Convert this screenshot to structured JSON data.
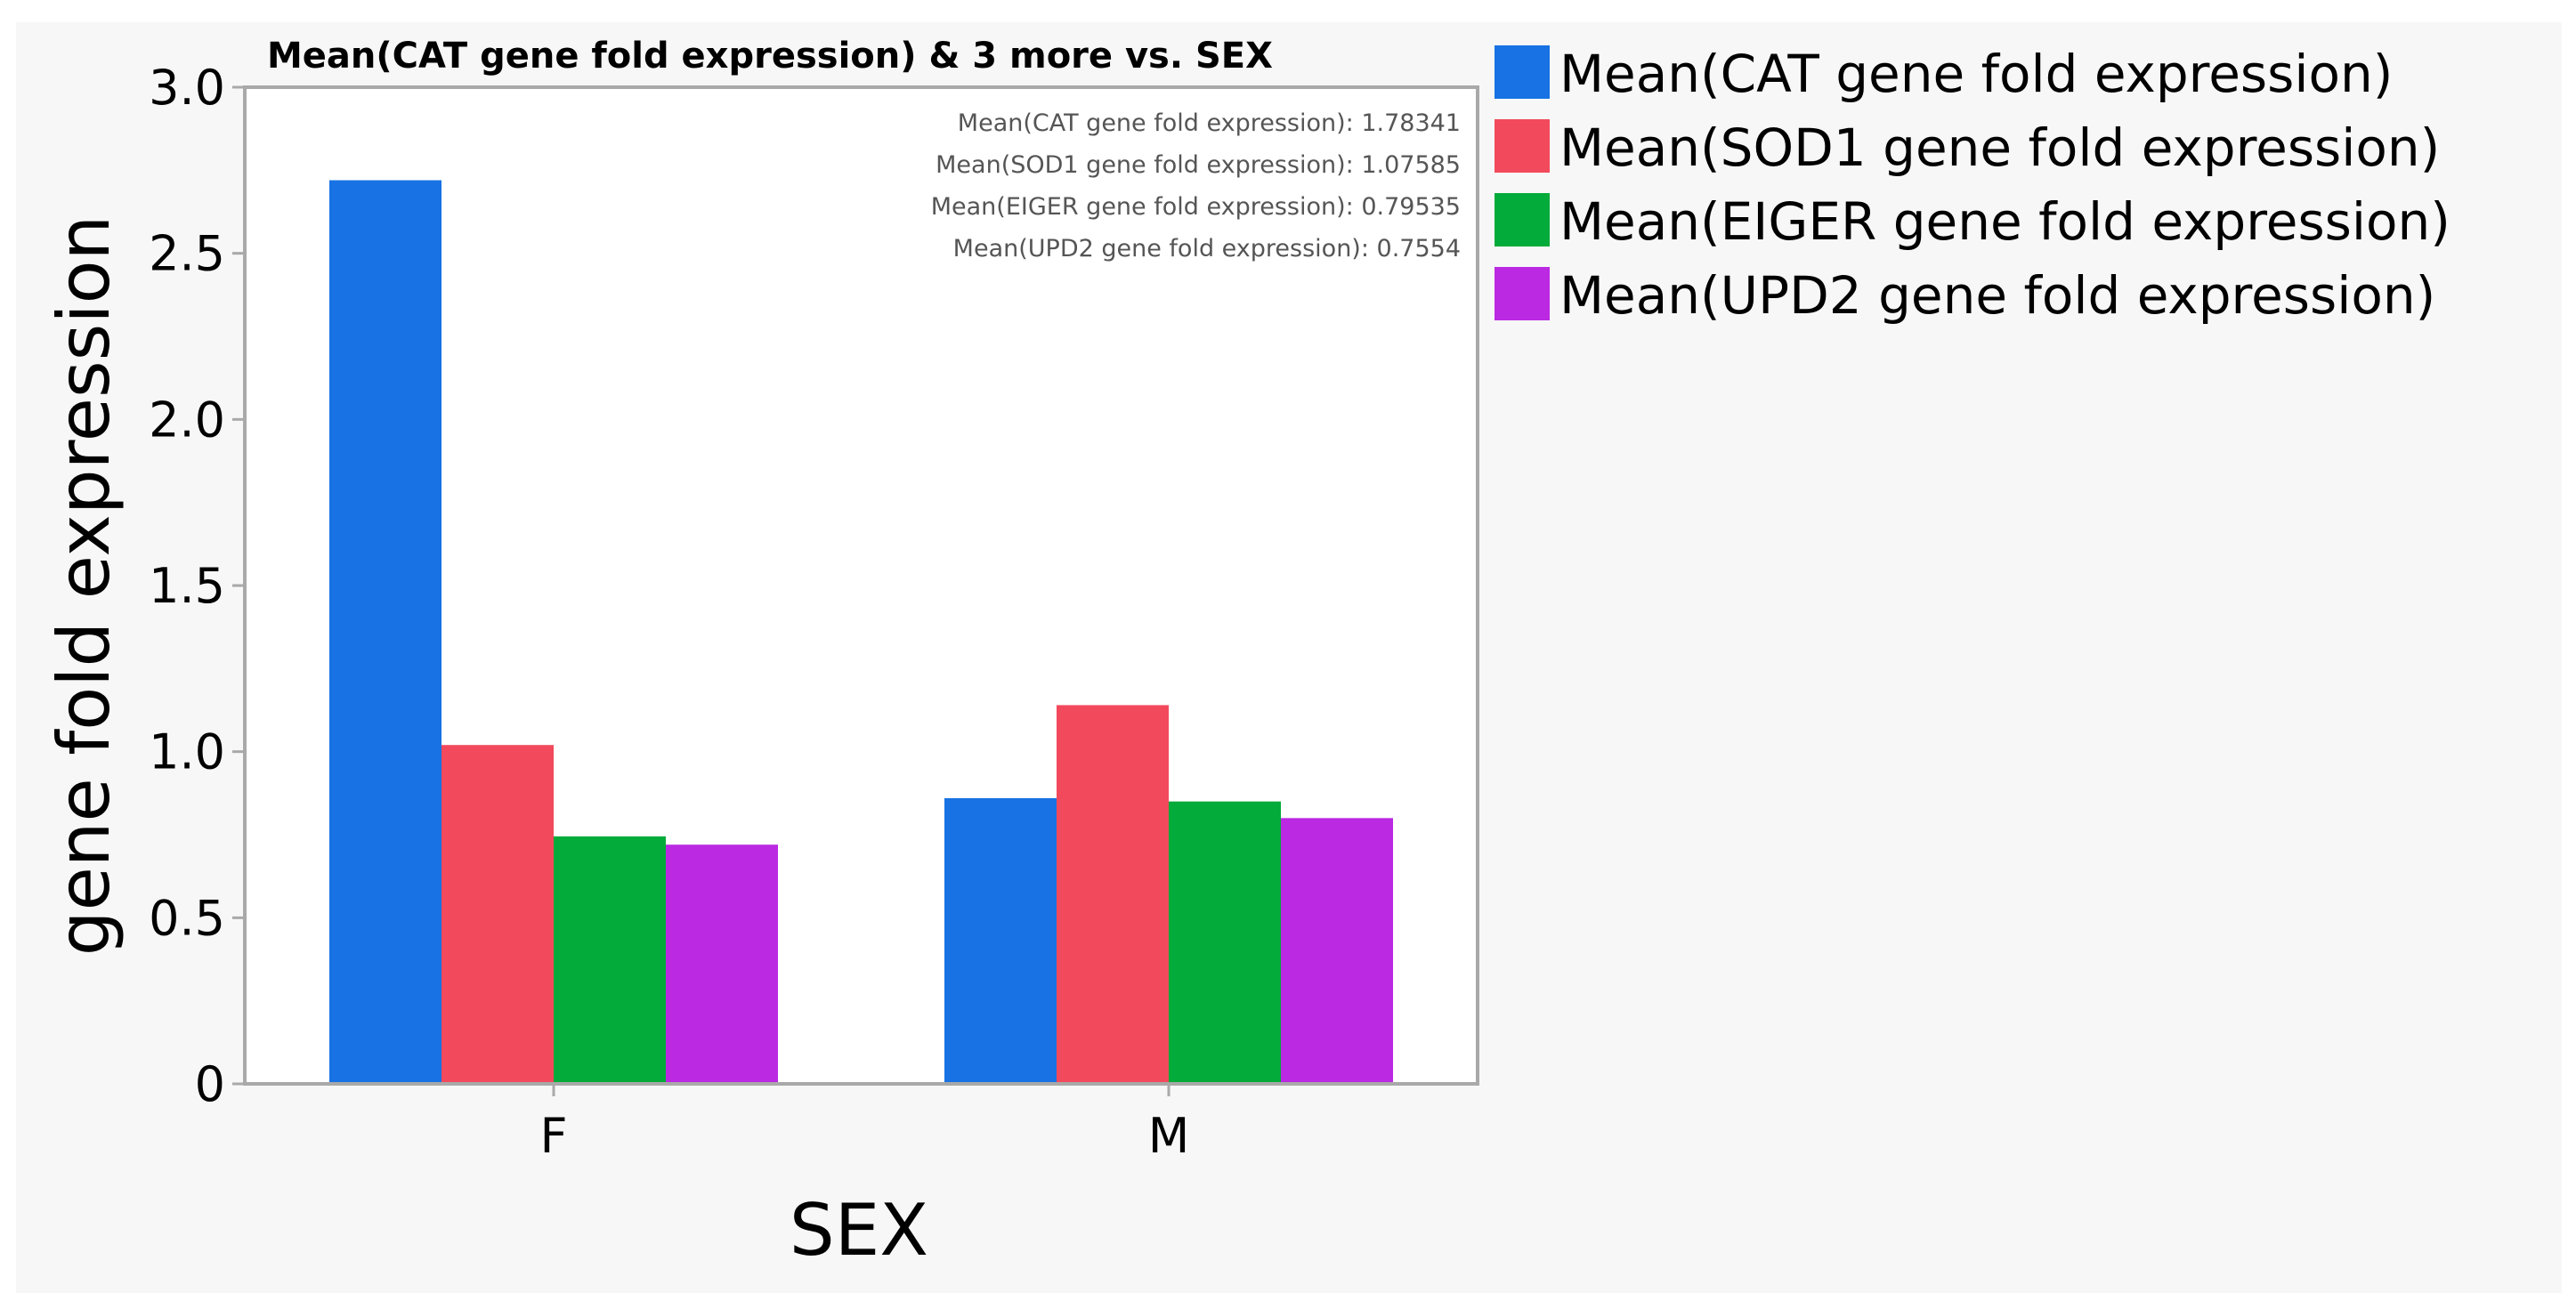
{
  "chart_data": {
    "type": "bar",
    "title": "Mean(CAT gene fold expression) & 3 more vs. SEX",
    "xlabel": "SEX",
    "ylabel": "gene fold expression",
    "ylim": [
      0,
      3.0
    ],
    "yticks": [
      "0",
      "0.5",
      "1.0",
      "1.5",
      "2.0",
      "2.5",
      "3.0"
    ],
    "ytick_values": [
      0,
      0.5,
      1.0,
      1.5,
      2.0,
      2.5,
      3.0
    ],
    "categories": [
      "F",
      "M"
    ],
    "series": [
      {
        "name": "Mean(CAT gene fold expression)",
        "color": "#1872e3",
        "values": [
          2.72,
          0.86
        ]
      },
      {
        "name": "Mean(SOD1 gene fold expression)",
        "color": "#f24a5c",
        "values": [
          1.02,
          1.14
        ]
      },
      {
        "name": "Mean(EIGER gene fold expression)",
        "color": "#03ab3a",
        "values": [
          0.745,
          0.85
        ]
      },
      {
        "name": "Mean(UPD2 gene fold expression)",
        "color": "#bb29e2",
        "values": [
          0.72,
          0.8
        ]
      }
    ],
    "summary_lines": [
      "Mean(CAT gene fold expression): 1.78341",
      "Mean(SOD1 gene fold expression): 1.07585",
      "Mean(EIGER gene fold expression): 0.79535",
      "Mean(UPD2 gene fold expression): 0.7554"
    ],
    "legend_position": "right",
    "grid": false
  },
  "colors": {
    "background": "#f7f7f7",
    "plot_background": "#ffffff",
    "frame": "#a9a9a9"
  }
}
